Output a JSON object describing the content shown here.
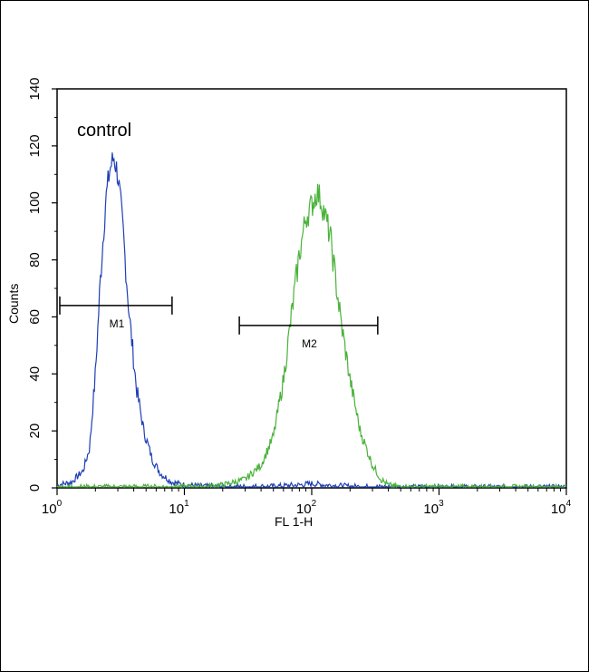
{
  "chart_data": {
    "type": "histogram",
    "xscale": "log",
    "xlim": [
      1,
      10000
    ],
    "ylim": [
      0,
      140
    ],
    "xlabel": "FL 1-H",
    "ylabel": "Counts",
    "x_tick_labels": [
      {
        "base": "10",
        "exp": "0",
        "value": 1
      },
      {
        "base": "10",
        "exp": "1",
        "value": 10
      },
      {
        "base": "10",
        "exp": "2",
        "value": 100
      },
      {
        "base": "10",
        "exp": "3",
        "value": 1000
      },
      {
        "base": "10",
        "exp": "4",
        "value": 10000
      }
    ],
    "y_ticks": [
      "0",
      "20",
      "40",
      "60",
      "80",
      "100",
      "120",
      "140"
    ],
    "annotation": "control",
    "series": [
      {
        "color": "#1f3fb5",
        "points": [
          [
            1.0,
            1
          ],
          [
            1.3,
            2
          ],
          [
            1.6,
            6
          ],
          [
            1.8,
            14
          ],
          [
            2.0,
            40
          ],
          [
            2.2,
            75
          ],
          [
            2.4,
            100
          ],
          [
            2.6,
            112
          ],
          [
            2.8,
            116
          ],
          [
            3.0,
            110
          ],
          [
            3.3,
            90
          ],
          [
            3.7,
            60
          ],
          [
            4.2,
            35
          ],
          [
            4.8,
            20
          ],
          [
            5.6,
            10
          ],
          [
            6.5,
            5
          ],
          [
            8,
            2
          ],
          [
            10,
            1
          ],
          [
            15,
            0.5
          ],
          [
            25,
            0.3
          ],
          [
            50,
            0.5
          ],
          [
            80,
            1
          ],
          [
            100,
            1.5
          ],
          [
            130,
            1
          ],
          [
            200,
            0.5
          ],
          [
            300,
            0.3
          ],
          [
            1000,
            0.2
          ],
          [
            10000,
            0.2
          ]
        ]
      },
      {
        "color": "#4ab23a",
        "points": [
          [
            1,
            0.2
          ],
          [
            10,
            0.3
          ],
          [
            15,
            0.5
          ],
          [
            20,
            1
          ],
          [
            30,
            3
          ],
          [
            40,
            8
          ],
          [
            50,
            18
          ],
          [
            60,
            38
          ],
          [
            70,
            62
          ],
          [
            80,
            82
          ],
          [
            90,
            95
          ],
          [
            100,
            99
          ],
          [
            110,
            104
          ],
          [
            120,
            100
          ],
          [
            140,
            88
          ],
          [
            170,
            58
          ],
          [
            200,
            38
          ],
          [
            240,
            20
          ],
          [
            300,
            8
          ],
          [
            350,
            3
          ],
          [
            400,
            1
          ],
          [
            500,
            0.3
          ],
          [
            10000,
            0.2
          ]
        ]
      }
    ],
    "gates": [
      {
        "label": "M1",
        "x_start": 1.05,
        "x_end": 8.0,
        "y": 64
      },
      {
        "label": "M2",
        "x_start": 27,
        "x_end": 330,
        "y": 57
      }
    ]
  }
}
